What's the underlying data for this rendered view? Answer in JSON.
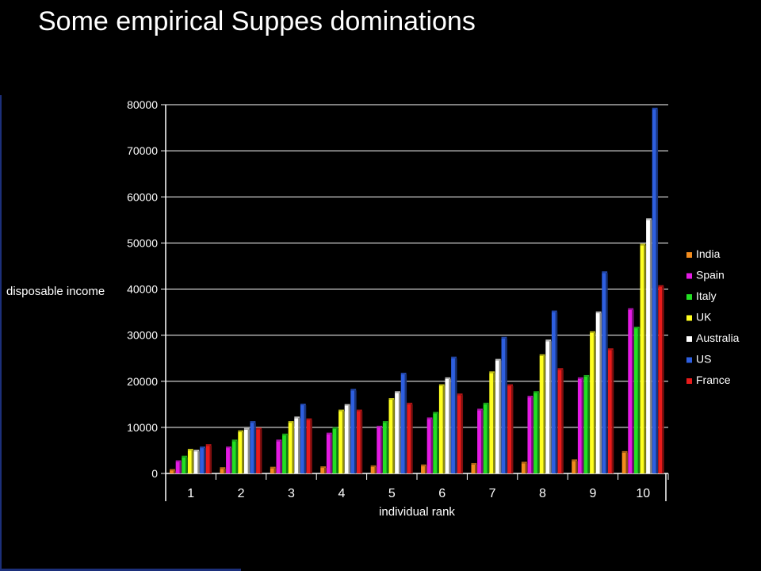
{
  "slide": {
    "title": "Some empirical Suppes dominations"
  },
  "colors": {
    "background": "#000000",
    "text": "#ffffff"
  },
  "chart_data": {
    "type": "bar",
    "title": "",
    "xlabel": "individual rank",
    "ylabel": "disposable income",
    "ylim": [
      0,
      80000
    ],
    "yticks": [
      0,
      10000,
      20000,
      30000,
      40000,
      50000,
      60000,
      70000,
      80000
    ],
    "grid": true,
    "legend_position": "right",
    "categories": [
      "1",
      "2",
      "3",
      "4",
      "5",
      "6",
      "7",
      "8",
      "9",
      "10"
    ],
    "series": [
      {
        "name": "India",
        "color": "#f28c1e",
        "values": [
          600,
          1000,
          1100,
          1200,
          1400,
          1600,
          1900,
          2200,
          2700,
          4500
        ]
      },
      {
        "name": "Spain",
        "color": "#e31be3",
        "values": [
          2500,
          5500,
          7000,
          8500,
          10000,
          11800,
          13700,
          16500,
          20500,
          35500
        ]
      },
      {
        "name": "Italy",
        "color": "#22e022",
        "values": [
          3500,
          7000,
          8300,
          9700,
          11000,
          13000,
          15000,
          17500,
          21000,
          31500
        ]
      },
      {
        "name": "UK",
        "color": "#ffff20",
        "values": [
          5000,
          9000,
          11000,
          13500,
          16000,
          19000,
          21800,
          25500,
          30500,
          49500
        ]
      },
      {
        "name": "Australia",
        "color": "#ffffff",
        "values": [
          4800,
          9500,
          12000,
          14700,
          17500,
          20500,
          24500,
          28700,
          34800,
          55000
        ]
      },
      {
        "name": "US",
        "color": "#2e5fe0",
        "values": [
          5500,
          11000,
          14800,
          18000,
          21500,
          25000,
          29300,
          35000,
          43500,
          79000
        ]
      },
      {
        "name": "France",
        "color": "#e81b1b",
        "values": [
          6000,
          9600,
          11600,
          13500,
          15000,
          17000,
          19000,
          22500,
          26800,
          40500
        ]
      }
    ]
  }
}
